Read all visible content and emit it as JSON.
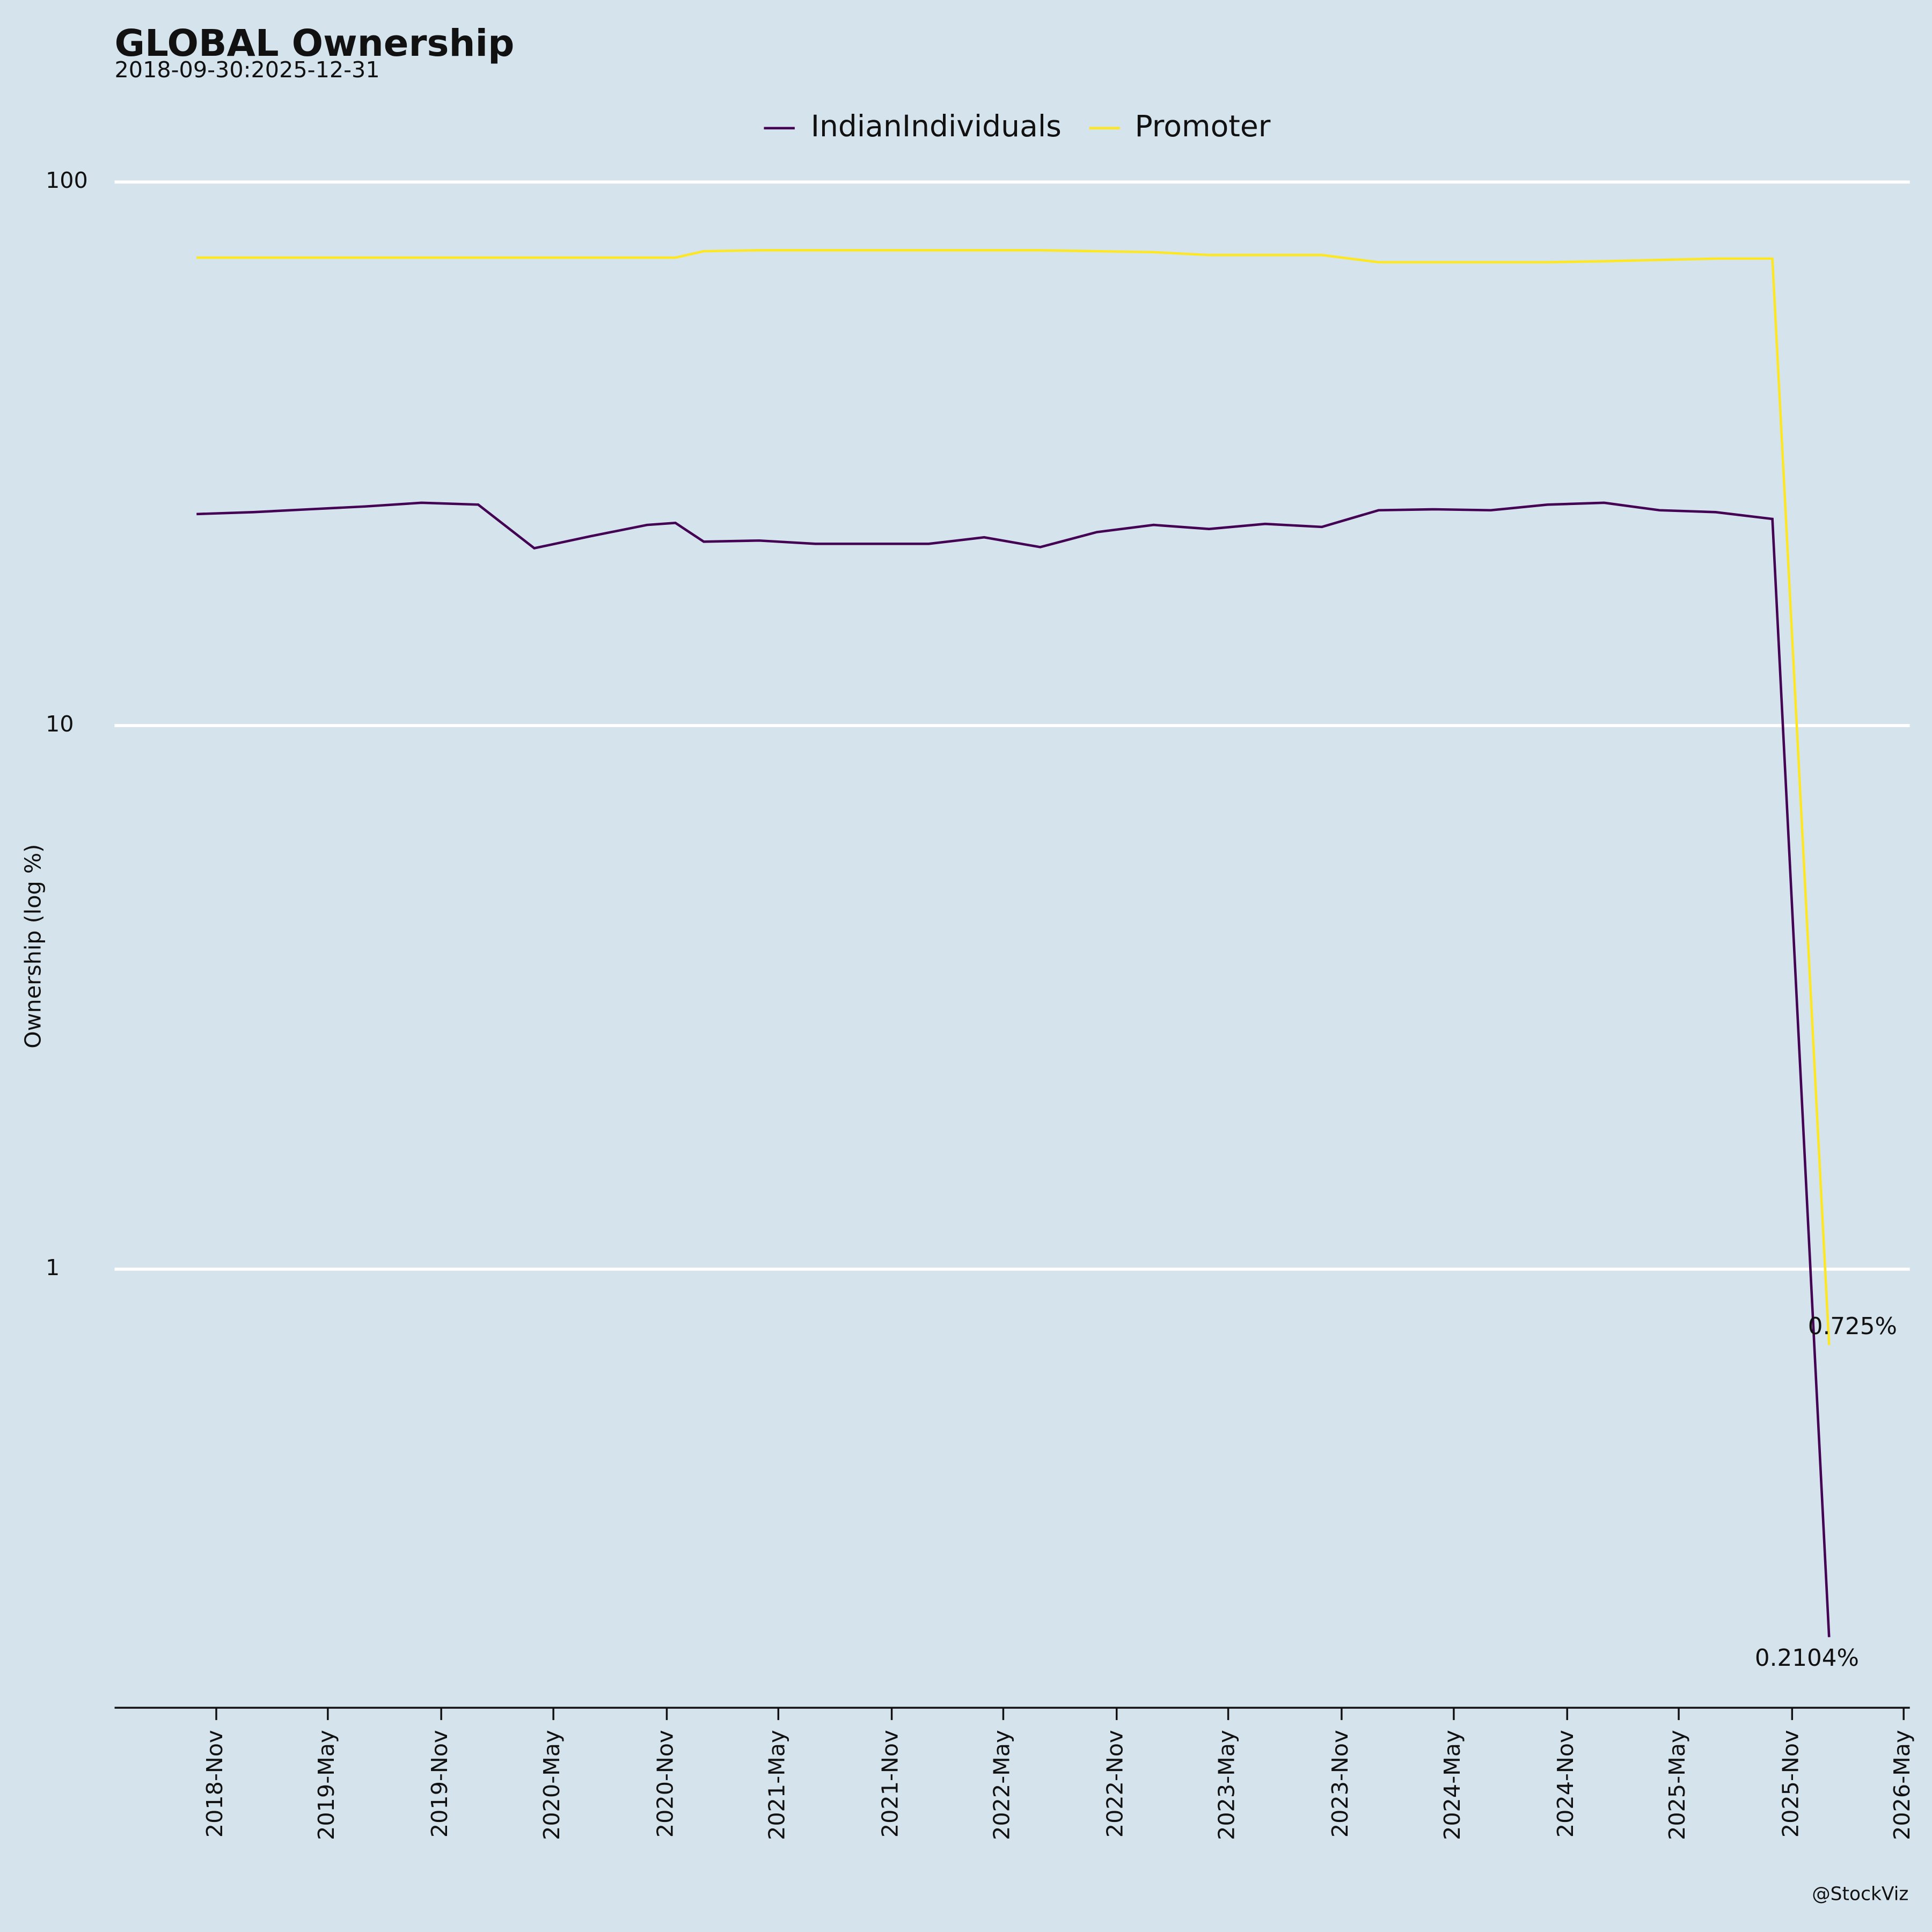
{
  "chart_data": {
    "type": "line",
    "title": "GLOBAL Ownership",
    "subtitle": "2018-09-30:2025-12-31",
    "y_label": "Ownership (log %)",
    "watermark": "@StockViz",
    "log_y": true,
    "grid": true,
    "legend": "upper center",
    "x": [
      "2018-09-30",
      "2018-12-31",
      "2019-03-31",
      "2019-06-30",
      "2019-09-30",
      "2019-12-31",
      "2020-03-31",
      "2020-06-30",
      "2020-09-30",
      "2020-11-15",
      "2020-12-31",
      "2021-03-31",
      "2021-06-30",
      "2021-09-30",
      "2021-12-31",
      "2022-03-31",
      "2022-06-30",
      "2022-09-30",
      "2022-12-31",
      "2023-03-31",
      "2023-06-30",
      "2023-09-30",
      "2023-12-31",
      "2024-03-31",
      "2024-06-30",
      "2024-09-30",
      "2024-12-31",
      "2025-03-31",
      "2025-06-30",
      "2025-09-30",
      "2025-12-31"
    ],
    "series": [
      {
        "name": "IndianIndividuals",
        "color": "#440154",
        "values": [
          24.5,
          24.7,
          25.0,
          25.3,
          25.7,
          25.5,
          21.2,
          22.3,
          23.4,
          23.6,
          21.8,
          21.9,
          21.6,
          21.6,
          21.6,
          22.2,
          21.3,
          22.7,
          23.4,
          23.0,
          23.5,
          23.2,
          24.9,
          25.0,
          24.9,
          25.5,
          25.7,
          24.9,
          24.7,
          24.0,
          0.2104
        ],
        "value_labels": [
          null,
          null,
          null,
          null,
          null,
          null,
          null,
          null,
          null,
          null,
          null,
          null,
          null,
          null,
          null,
          null,
          null,
          null,
          null,
          null,
          null,
          null,
          null,
          null,
          null,
          null,
          null,
          null,
          null,
          null,
          "0.2104%"
        ]
      },
      {
        "name": "Promoter",
        "color": "#fde725",
        "values": [
          72.6,
          72.6,
          72.6,
          72.6,
          72.6,
          72.6,
          72.6,
          72.6,
          72.6,
          72.6,
          74.6,
          74.9,
          74.9,
          74.9,
          74.9,
          74.9,
          74.9,
          74.6,
          74.3,
          73.4,
          73.4,
          73.4,
          71.2,
          71.2,
          71.2,
          71.2,
          71.5,
          71.9,
          72.3,
          72.3,
          0.725
        ],
        "value_labels": [
          null,
          null,
          null,
          null,
          null,
          null,
          null,
          null,
          null,
          null,
          null,
          null,
          null,
          null,
          null,
          null,
          null,
          null,
          null,
          null,
          null,
          null,
          null,
          null,
          null,
          null,
          null,
          null,
          null,
          null,
          "0.725%"
        ]
      }
    ],
    "xlim": [
      "2018-05-20",
      "2026-05-11"
    ],
    "xticks": [
      {
        "value": "2018-11-01",
        "label": "2018-Nov"
      },
      {
        "value": "2019-05-01",
        "label": "2019-May"
      },
      {
        "value": "2019-11-01",
        "label": "2019-Nov"
      },
      {
        "value": "2020-05-01",
        "label": "2020-May"
      },
      {
        "value": "2020-11-01",
        "label": "2020-Nov"
      },
      {
        "value": "2021-05-01",
        "label": "2021-May"
      },
      {
        "value": "2021-11-01",
        "label": "2021-Nov"
      },
      {
        "value": "2022-05-01",
        "label": "2022-May"
      },
      {
        "value": "2022-11-01",
        "label": "2022-Nov"
      },
      {
        "value": "2023-05-01",
        "label": "2023-May"
      },
      {
        "value": "2023-11-01",
        "label": "2023-Nov"
      },
      {
        "value": "2024-05-01",
        "label": "2024-May"
      },
      {
        "value": "2024-11-01",
        "label": "2024-Nov"
      },
      {
        "value": "2025-05-01",
        "label": "2025-May"
      },
      {
        "value": "2025-11-01",
        "label": "2025-Nov"
      },
      {
        "value": "2026-05-01",
        "label": "2026-May"
      }
    ],
    "ylim": [
      0.156,
      108
    ],
    "yticks": [
      1,
      10,
      100
    ]
  }
}
